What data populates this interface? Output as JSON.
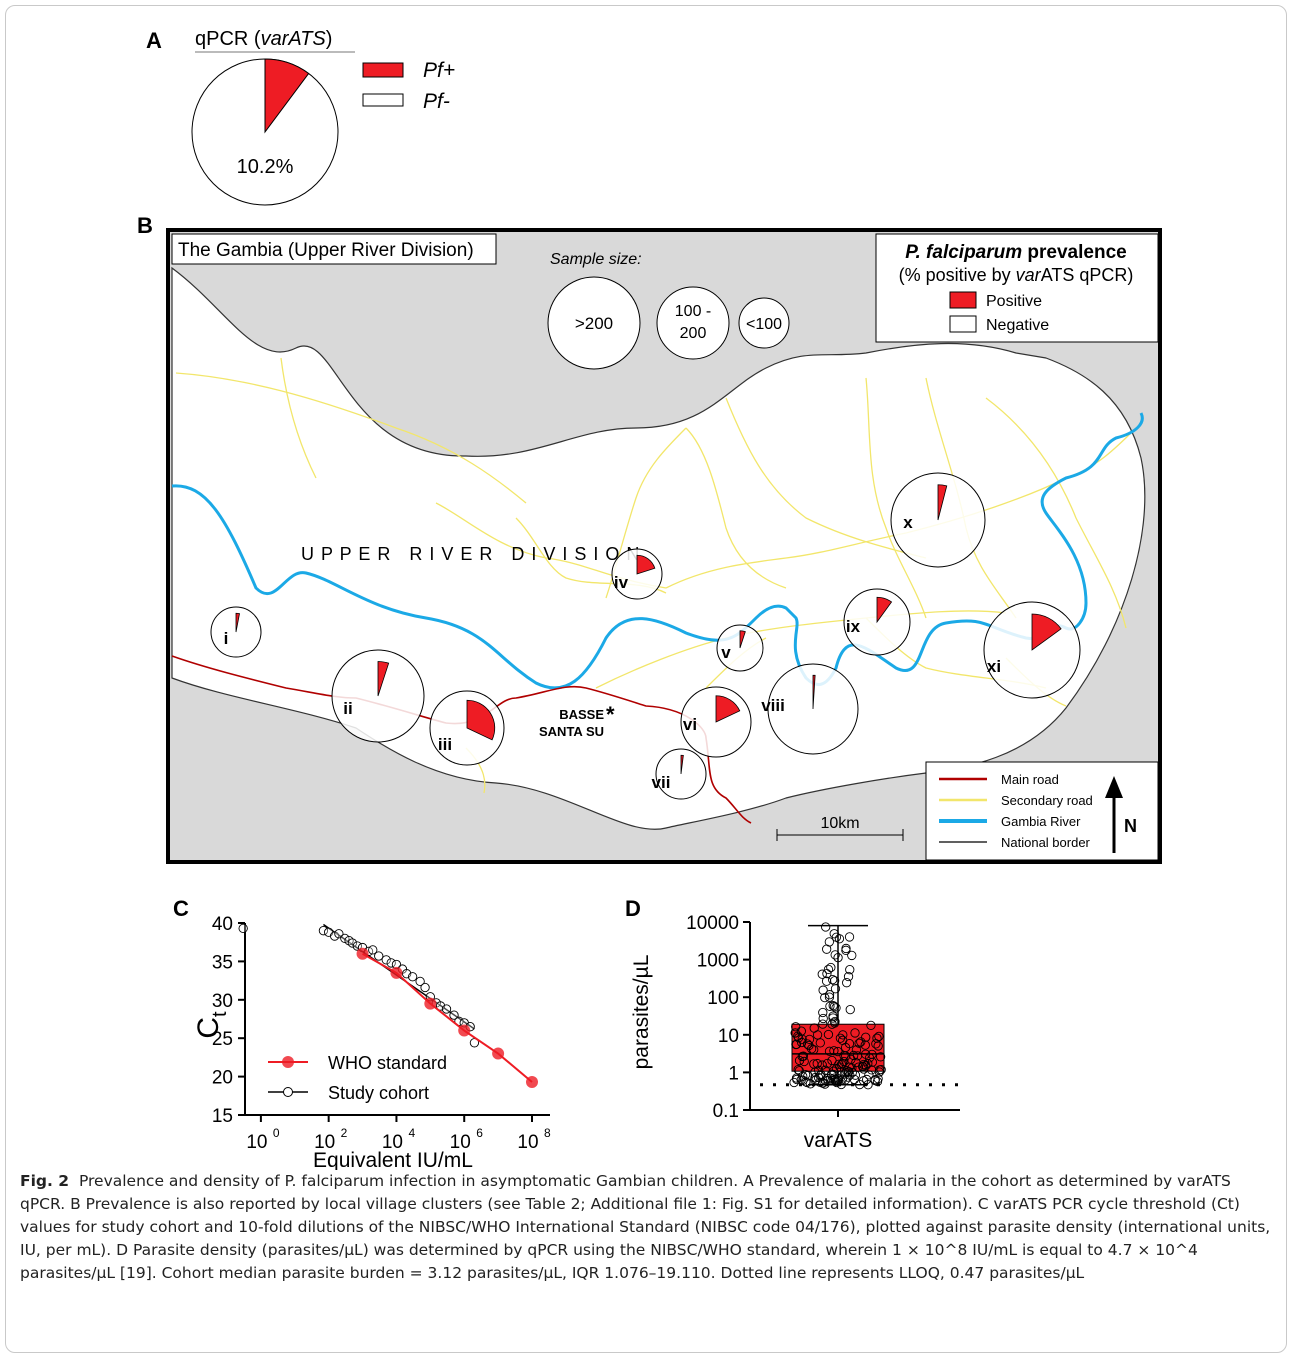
{
  "panelA": {
    "letter": "A",
    "title": "qPCR (",
    "title_italic": "varATS",
    "title_end": ")",
    "percent_label": "10.2%",
    "legend": [
      {
        "label": "Pf+",
        "color": "#ee1c24"
      },
      {
        "label": "Pf-",
        "color": "#ffffff"
      }
    ]
  },
  "panelB": {
    "letter": "B",
    "map_title": "The Gambia (Upper River Division)",
    "sample_size_label": "Sample size:",
    "sizes": [
      ">200",
      "100 -\n200",
      "<100"
    ],
    "prevalence_title": "P. falciparum",
    "prevalence_title_end": " prevalence",
    "prevalence_sub_pre": "(% positive by ",
    "prevalence_sub_italic": "var",
    "prevalence_sub_end": "ATS qPCR)",
    "positive_label": "Positive",
    "negative_label": "Negative",
    "division_label": "U P P E R   R I V E R   D I V I S I O N",
    "town_label_1": "BASSE",
    "town_label_2": "SANTA SU",
    "town_marker": "*",
    "scale_label": "10km",
    "north_label": "N",
    "map_legend": [
      {
        "label": "Main road",
        "color": "#b00000"
      },
      {
        "label": "Secondary road",
        "color": "#f2e66b"
      },
      {
        "label": "Gambia River",
        "color": "#1ba9e6"
      },
      {
        "label": "National border",
        "color": "#000000"
      }
    ],
    "clusters": [
      {
        "label": "i"
      },
      {
        "label": "ii"
      },
      {
        "label": "iii"
      },
      {
        "label": "iv"
      },
      {
        "label": "v"
      },
      {
        "label": "vi"
      },
      {
        "label": "vii"
      },
      {
        "label": "viii"
      },
      {
        "label": "ix"
      },
      {
        "label": "x"
      },
      {
        "label": "xi"
      }
    ]
  },
  "panelC": {
    "letter": "C",
    "ylabel": "C",
    "ylabel_sub": "t",
    "xlabel": "Equivalent IU/mL",
    "yticks": [
      "40",
      "35",
      "30",
      "25",
      "20",
      "15"
    ],
    "xtick_base": "10",
    "xtick_exps": [
      "0",
      "2",
      "4",
      "6",
      "8"
    ],
    "legend": [
      {
        "label": "WHO standard",
        "color": "#ee1c24"
      },
      {
        "label": "Study cohort",
        "color": "#000000"
      }
    ]
  },
  "panelD": {
    "letter": "D",
    "ylabel": "parasites/µL",
    "yticks": [
      "10000",
      "1000",
      "100",
      "10",
      "1",
      "0.1"
    ],
    "xlabel": "varATS",
    "box_color": "#ee1c24"
  },
  "caption": {
    "fig": "Fig. 2",
    "text": "Prevalence and density of P. falciparum infection in asymptomatic Gambian children. A Prevalence of malaria in the cohort as determined by varATS qPCR. B Prevalence is also reported by local village clusters (see Table 2; Additional file 1: Fig. S1 for detailed information). C varATS PCR cycle threshold (Ct) values for study cohort and 10-fold dilutions of the NIBSC/WHO International Standard (NIBSC code 04/176), plotted against parasite density (international units, IU, per mL). D Parasite density (parasites/µL) was determined by qPCR using the NIBSC/WHO standard, wherein 1 × 10^8 IU/mL is equal to 4.7 × 10^4 parasites/µL [19]. Cohort median parasite burden = 3.12 parasites/µL, IQR 1.076–19.110. Dotted line represents LLOQ, 0.47 parasites/µL"
  },
  "chart_data": [
    {
      "type": "pie",
      "panel": "A",
      "title": "qPCR (varATS)",
      "labels": [
        "Pf+",
        "Pf-"
      ],
      "values": [
        10.2,
        89.8
      ],
      "colors": [
        "#ee1c24",
        "#ffffff"
      ]
    },
    {
      "type": "scatter",
      "panel": "C",
      "xlabel": "Equivalent IU/mL",
      "ylabel": "Ct",
      "xscale": "log",
      "xlim": [
        0.1,
        100000000
      ],
      "ylim": [
        15,
        40
      ],
      "series": [
        {
          "name": "WHO standard",
          "x": [
            1000,
            10000,
            100000,
            1000000,
            10000000,
            100000000
          ],
          "y": [
            36,
            33.5,
            29.5,
            26,
            23,
            19.3
          ]
        },
        {
          "name": "Study cohort",
          "x": [
            0.3,
            70,
            100,
            150,
            200,
            300,
            400,
            500,
            700,
            1000,
            1500,
            2000,
            3000,
            5000,
            7000,
            10000,
            15000,
            20000,
            30000,
            50000,
            70000,
            100000,
            150000,
            200000,
            300000,
            500000,
            700000,
            1000000,
            1500000,
            2000000
          ],
          "y": [
            39.3,
            39,
            38.8,
            38.3,
            38.6,
            38,
            37.7,
            37.4,
            37,
            36.8,
            36.3,
            36.5,
            35.7,
            35.2,
            34.8,
            34.6,
            34,
            33.4,
            33,
            32.4,
            31.6,
            30.4,
            29.6,
            29.2,
            28.8,
            28,
            27.2,
            27,
            26.5,
            24.4
          ]
        }
      ]
    },
    {
      "type": "box",
      "panel": "D",
      "categories": [
        "varATS"
      ],
      "yscale": "log",
      "ylim": [
        0.1,
        10000
      ],
      "ylabel": "parasites/µL",
      "median": 3.12,
      "q1": 1.076,
      "q3": 19.11,
      "whisker_low": 0.47,
      "whisker_high": 8000,
      "lloq": 0.47
    }
  ]
}
